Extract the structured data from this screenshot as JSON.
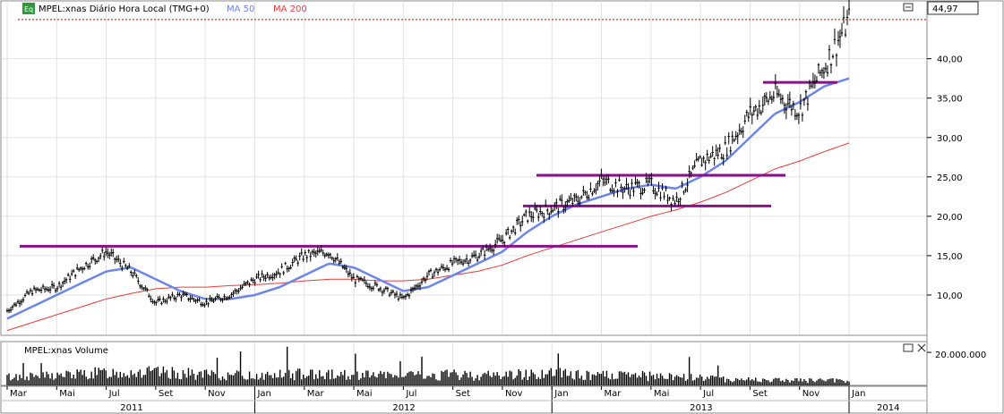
{
  "legend": {
    "badge": "Eq",
    "symbol_label": "MPEL:xnas Diário Hora Local (TMG+0)",
    "ma50_label": "MA 50",
    "ma200_label": "MA 200"
  },
  "last_price_label": "44,97",
  "volume_panel": {
    "title": "MPEL:xnas Volume",
    "tick_label": "20.000.000"
  },
  "colors": {
    "ma50": "#6b86e8",
    "ma200": "#e63c3c",
    "level_lines": "#8b0f8b",
    "price_bars": "#000000",
    "last_price_line": "#cc0000",
    "badge_bg": "#2e9a3a"
  },
  "window_icons": [
    "maximize-icon",
    "close-icon"
  ],
  "chart_data": [
    {
      "type": "line",
      "title": "MPEL:xnas Diário Hora Local (TMG+0)",
      "x_unit": "month",
      "x": [
        "2011-03",
        "2011-04",
        "2011-05",
        "2011-06",
        "2011-07",
        "2011-08",
        "2011-09",
        "2011-10",
        "2011-11",
        "2011-12",
        "2012-01",
        "2012-02",
        "2012-03",
        "2012-04",
        "2012-05",
        "2012-06",
        "2012-07",
        "2012-08",
        "2012-09",
        "2012-10",
        "2012-11",
        "2012-12",
        "2013-01",
        "2013-02",
        "2013-03",
        "2013-04",
        "2013-05",
        "2013-06",
        "2013-07",
        "2013-08",
        "2013-09",
        "2013-10",
        "2013-11",
        "2013-12",
        "2014-01"
      ],
      "ylim": [
        5,
        47
      ],
      "yticks": [
        "10,00",
        "15,00",
        "20,00",
        "25,00",
        "30,00",
        "35,00",
        "40,00"
      ],
      "ytick_values": [
        10,
        15,
        20,
        25,
        30,
        35,
        40
      ],
      "series": [
        {
          "name": "MPEL:xnas",
          "values": [
            8.0,
            10.5,
            11.0,
            13.5,
            15.5,
            13.0,
            9.0,
            10.0,
            9.0,
            10.0,
            12.0,
            13.0,
            15.0,
            15.5,
            12.0,
            11.0,
            9.5,
            12.5,
            14.0,
            15.0,
            17.0,
            20.0,
            21.0,
            22.0,
            24.5,
            23.5,
            24.0,
            22.0,
            27.0,
            28.5,
            33.0,
            35.5,
            33.5,
            39.0,
            44.97
          ]
        },
        {
          "name": "MA 50",
          "values": [
            7.0,
            8.5,
            10.0,
            11.5,
            13.0,
            13.5,
            12.0,
            10.5,
            9.5,
            9.5,
            10.0,
            11.0,
            12.5,
            14.0,
            13.5,
            12.0,
            10.5,
            11.0,
            12.5,
            14.0,
            15.5,
            18.0,
            20.0,
            21.5,
            22.5,
            23.5,
            24.0,
            23.5,
            25.0,
            27.0,
            30.0,
            33.0,
            34.5,
            36.5,
            37.5
          ]
        },
        {
          "name": "MA 200",
          "values": [
            5.5,
            6.5,
            7.5,
            8.5,
            9.5,
            10.2,
            10.8,
            11.0,
            11.0,
            11.2,
            11.3,
            11.5,
            11.8,
            12.0,
            12.0,
            11.8,
            11.8,
            12.0,
            12.5,
            13.0,
            13.8,
            15.0,
            16.0,
            17.0,
            18.0,
            19.0,
            20.0,
            20.8,
            21.8,
            23.0,
            24.5,
            26.0,
            27.0,
            28.2,
            29.3
          ]
        }
      ],
      "levels": [
        16.2,
        21.3,
        25.2,
        37.0
      ],
      "last_price": 44.97
    },
    {
      "type": "bar",
      "title": "MPEL:xnas Volume",
      "ylim": [
        0,
        26000000
      ],
      "yticks": [
        "20.000.000"
      ],
      "ytick_values": [
        20000000
      ],
      "note": "daily volume bars, approximate monthly typical volume",
      "values": [
        6000000,
        6500000,
        7000000,
        8000000,
        9000000,
        9500000,
        9000000,
        8500000,
        7500000,
        7000000,
        7000000,
        7500000,
        8000000,
        7500000,
        8000000,
        7000000,
        6500000,
        7000000,
        7500000,
        7000000,
        7500000,
        8000000,
        8500000,
        7500000,
        7000000,
        7000000,
        6500000,
        6000000,
        5500000,
        4500000,
        4000000,
        3800000,
        3500000,
        3500000,
        3000000
      ]
    }
  ],
  "x_axis": {
    "month_labels": [
      "Mar",
      "Mai",
      "Jul",
      "Set",
      "Nov",
      "Jan",
      "Mar",
      "Mai",
      "Jul",
      "Set",
      "Nov",
      "Jan",
      "Mar",
      "Mai",
      "Jul",
      "Set",
      "Nov",
      "Jan"
    ],
    "year_labels": [
      "2011",
      "2012",
      "2013",
      "2014"
    ]
  }
}
